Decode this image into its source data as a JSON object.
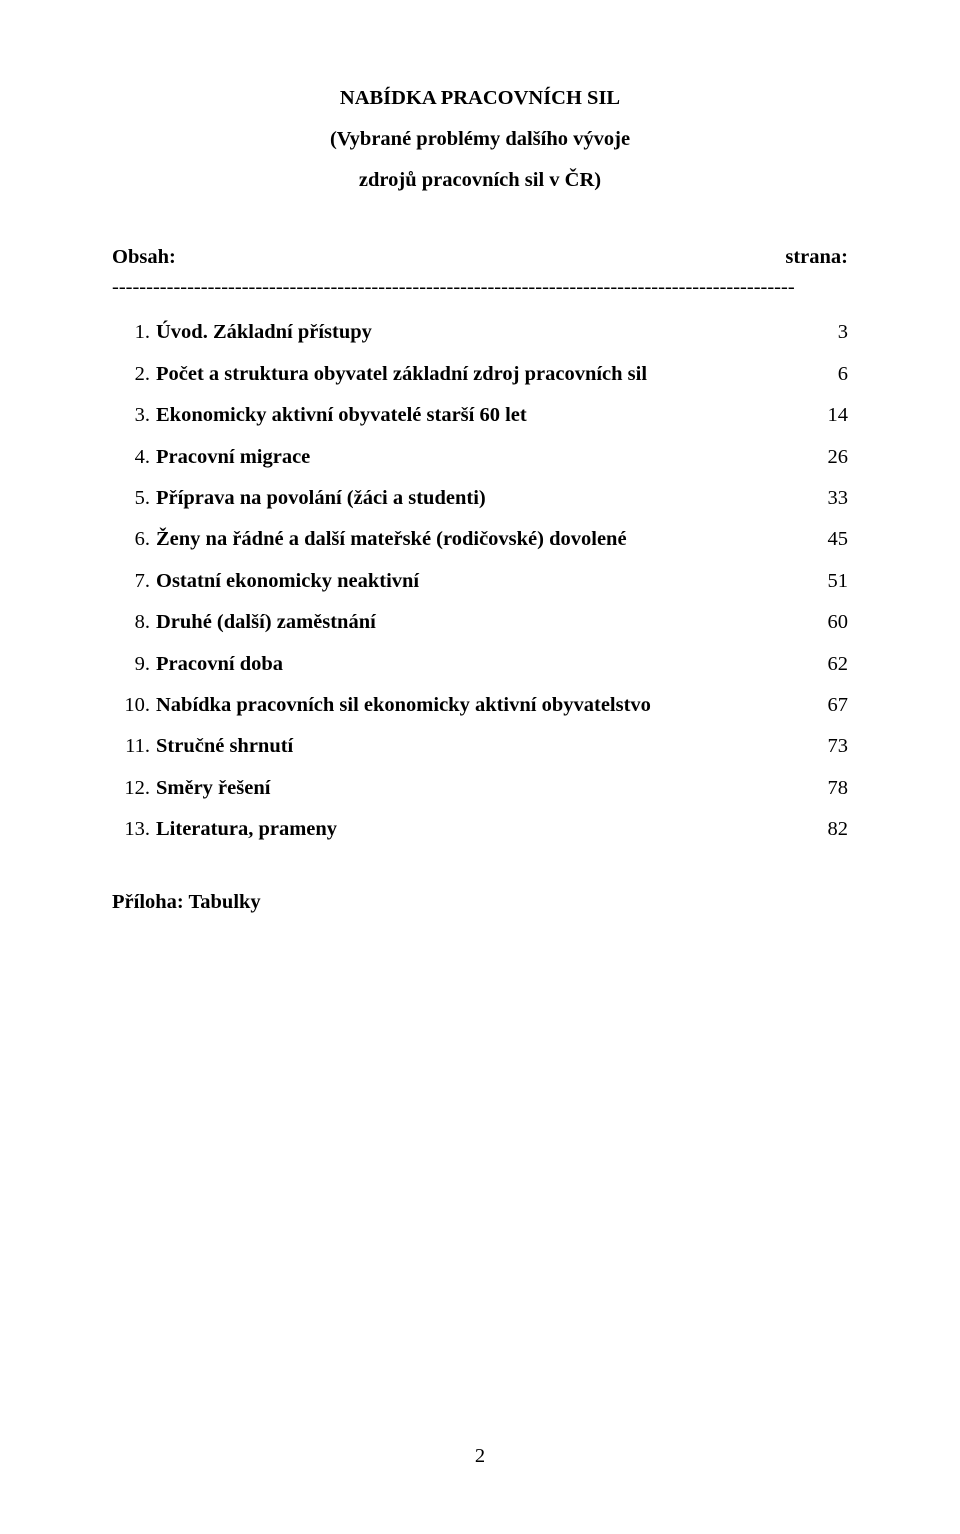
{
  "title": {
    "line1": "NABÍDKA PRACOVNÍCH SIL",
    "line2": "(Vybrané problémy dalšího vývoje",
    "line3": "zdrojů pracovních sil v ČR)"
  },
  "obsah_label": "Obsah:",
  "strana_label": "strana:",
  "dash_line": "----------------------------------------------------------------------------------------------------",
  "toc": [
    {
      "num": "1.",
      "label": "Úvod. Základní přístupy",
      "page": "3"
    },
    {
      "num": "2.",
      "label": "Počet a struktura obyvatel základní zdroj pracovních sil",
      "page": "6"
    },
    {
      "num": "3.",
      "label": "Ekonomicky aktivní obyvatelé starší 60 let",
      "page": "14"
    },
    {
      "num": "4.",
      "label": "Pracovní migrace",
      "page": "26"
    },
    {
      "num": "5.",
      "label": "Příprava na povolání (žáci a studenti)",
      "page": "33"
    },
    {
      "num": "6.",
      "label": "Ženy na řádné a další mateřské (rodičovské) dovolené",
      "page": "45"
    },
    {
      "num": "7.",
      "label": "Ostatní ekonomicky neaktivní",
      "page": "51"
    },
    {
      "num": "8.",
      "label": "Druhé (další) zaměstnání",
      "page": "60"
    },
    {
      "num": "9.",
      "label": "Pracovní doba",
      "page": "62"
    },
    {
      "num": "10.",
      "label": "Nabídka pracovních sil ekonomicky aktivní obyvatelstvo",
      "page": "67"
    },
    {
      "num": "11.",
      "label": "Stručné shrnutí",
      "page": "73"
    },
    {
      "num": "12.",
      "label": "Směry řešení",
      "page": "78"
    },
    {
      "num": "13.",
      "label": "Literatura, prameny",
      "page": "82"
    }
  ],
  "appendix": "Příloha: Tabulky",
  "page_number": "2",
  "style": {
    "num_col_width_single": 38,
    "num_col_width_double": 48,
    "num_pad_right": 6
  }
}
